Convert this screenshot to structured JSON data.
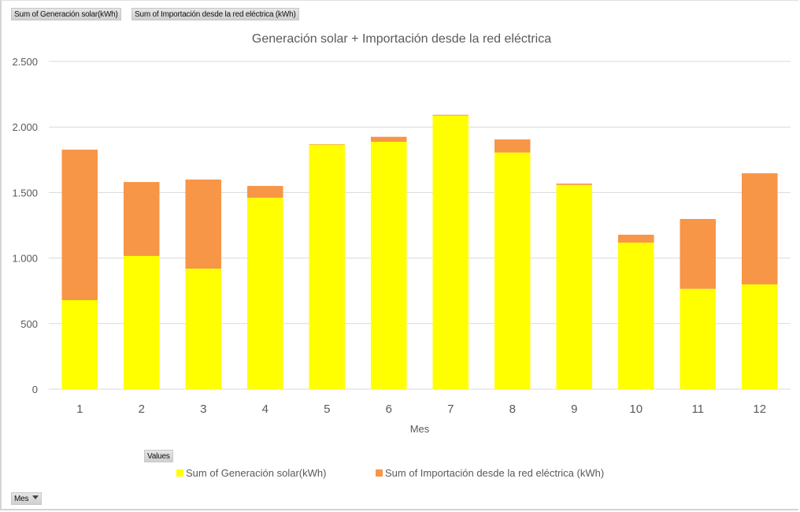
{
  "pivot_buttons": {
    "value_fields": [
      "Sum of Generación solar(kWh)",
      "Sum of Importación desde la red eléctrica (kWh)"
    ],
    "values_label": "Values",
    "axis_field": "Mes"
  },
  "colors": {
    "solar": "#FFFF00",
    "import": "#F79646",
    "grid": "#D9D9D9",
    "text": "#595959"
  },
  "chart_data": {
    "type": "bar",
    "stacked": true,
    "title": "Generación solar + Importación desde la red eléctrica",
    "xlabel": "Mes",
    "ylabel": "",
    "categories": [
      "1",
      "2",
      "3",
      "4",
      "5",
      "6",
      "7",
      "8",
      "9",
      "10",
      "11",
      "12"
    ],
    "ylim": [
      0,
      2500
    ],
    "yticks": [
      0,
      500,
      1000,
      1500,
      2000,
      2500
    ],
    "ytick_labels": [
      "0",
      "500",
      "1.000",
      "1.500",
      "2.000",
      "2.500"
    ],
    "grid": true,
    "legend_position": "bottom",
    "series": [
      {
        "name": "Sum of Generación solar(kWh)",
        "color": "#FFFF00",
        "values": [
          679,
          1016,
          919,
          1460,
          1865,
          1887,
          2087,
          1805,
          1558,
          1118,
          765,
          799
        ]
      },
      {
        "name": "Sum of Importación desde la red eléctrica (kWh)",
        "color": "#F79646",
        "values": [
          1148,
          564,
          680,
          90,
          4,
          38,
          6,
          100,
          10,
          60,
          533,
          848
        ]
      }
    ]
  }
}
